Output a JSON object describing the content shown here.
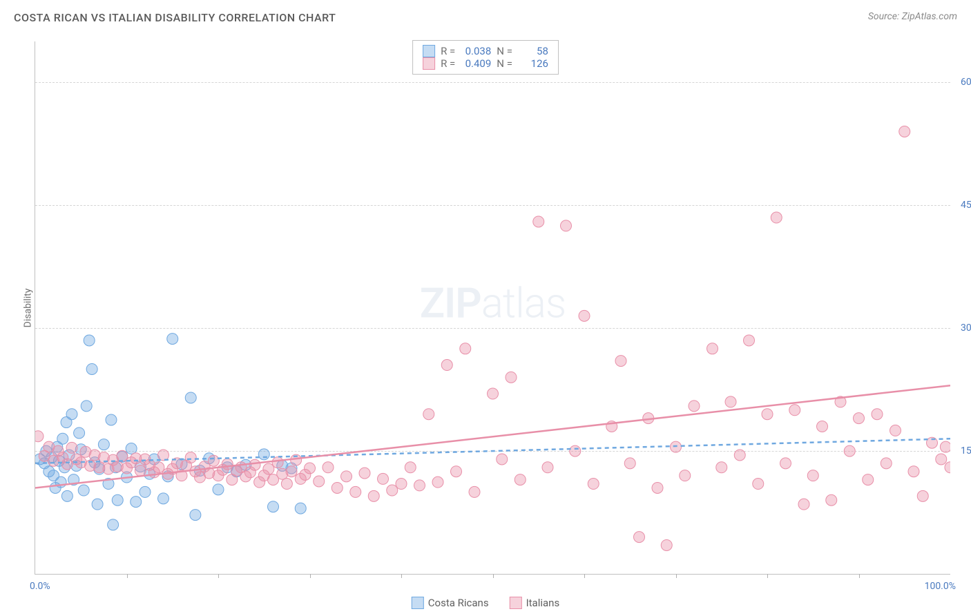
{
  "chart": {
    "type": "scatter",
    "title": "COSTA RICAN VS ITALIAN DISABILITY CORRELATION CHART",
    "source_label": "Source: ZipAtlas.com",
    "ylabel": "Disability",
    "watermark": {
      "part1": "ZIP",
      "part2": "atlas"
    },
    "background_color": "#ffffff",
    "grid_color": "#d5d5d5",
    "axis_color": "#c0c0c0",
    "title_color": "#5a5a5a",
    "title_fontsize": 16,
    "label_color": "#707070",
    "tick_color": "#4a7abf",
    "tick_fontsize": 14,
    "xlim": [
      0,
      100
    ],
    "ylim": [
      0,
      65
    ],
    "ytick_values": [
      15,
      30,
      45,
      60
    ],
    "ytick_labels": [
      "15.0%",
      "30.0%",
      "45.0%",
      "60.0%"
    ],
    "xtick_labels": {
      "start": "0.0%",
      "end": "100.0%"
    },
    "xminor_step": 10,
    "marker_radius": 8,
    "marker_fill_opacity": 0.45,
    "marker_stroke_opacity": 0.9,
    "marker_stroke_width": 1,
    "trendline_width": 2.5,
    "series": [
      {
        "name": "Costa Ricans",
        "key": "costa_ricans",
        "color": "#6fa8e0",
        "fill": "rgba(111,168,224,0.40)",
        "R": "0.038",
        "N": "58",
        "trendline": {
          "x1": 0,
          "y1": 13.5,
          "x2": 100,
          "y2": 16.5,
          "dash": "6,5"
        },
        "points": [
          [
            0.5,
            14
          ],
          [
            1,
            13.5
          ],
          [
            1.2,
            15
          ],
          [
            1.5,
            12.5
          ],
          [
            1.8,
            14.2
          ],
          [
            2,
            12
          ],
          [
            2.2,
            10.5
          ],
          [
            2.4,
            15.5
          ],
          [
            2.6,
            13.8
          ],
          [
            2.8,
            11.2
          ],
          [
            3,
            16.5
          ],
          [
            3.2,
            13
          ],
          [
            3.4,
            18.5
          ],
          [
            3.5,
            9.5
          ],
          [
            3.7,
            14.5
          ],
          [
            4,
            19.5
          ],
          [
            4.2,
            11.5
          ],
          [
            4.5,
            13.2
          ],
          [
            4.8,
            17.2
          ],
          [
            5,
            15.2
          ],
          [
            5.3,
            10.2
          ],
          [
            5.6,
            20.5
          ],
          [
            5.9,
            28.5
          ],
          [
            6.2,
            25.0
          ],
          [
            6.5,
            13.6
          ],
          [
            6.8,
            8.5
          ],
          [
            7,
            12.8
          ],
          [
            7.5,
            15.8
          ],
          [
            8,
            11.0
          ],
          [
            8.3,
            18.8
          ],
          [
            8.5,
            6.0
          ],
          [
            8.8,
            13.0
          ],
          [
            9,
            9.0
          ],
          [
            9.5,
            14.3
          ],
          [
            10,
            11.8
          ],
          [
            10.5,
            15.3
          ],
          [
            11,
            8.8
          ],
          [
            11.5,
            13.1
          ],
          [
            12,
            10.0
          ],
          [
            12.5,
            12.2
          ],
          [
            13,
            14.0
          ],
          [
            14,
            9.2
          ],
          [
            14.5,
            11.9
          ],
          [
            15,
            28.7
          ],
          [
            16,
            13.4
          ],
          [
            17,
            21.5
          ],
          [
            17.5,
            7.2
          ],
          [
            18,
            12.6
          ],
          [
            19,
            14.1
          ],
          [
            20,
            10.3
          ],
          [
            21,
            13.0
          ],
          [
            22,
            12.5
          ],
          [
            23,
            13.3
          ],
          [
            25,
            14.6
          ],
          [
            26,
            8.2
          ],
          [
            27,
            13.2
          ],
          [
            28,
            12.9
          ],
          [
            29,
            8.0
          ]
        ]
      },
      {
        "name": "Italians",
        "key": "italians",
        "color": "#e88fa8",
        "fill": "rgba(232,143,168,0.40)",
        "R": "0.409",
        "N": "126",
        "trendline": {
          "x1": 0,
          "y1": 10.5,
          "x2": 100,
          "y2": 23.0,
          "dash": null
        },
        "points": [
          [
            0.3,
            16.8
          ],
          [
            1,
            14.4
          ],
          [
            1.5,
            15.5
          ],
          [
            2,
            13.8
          ],
          [
            2.5,
            15.0
          ],
          [
            3,
            14.2
          ],
          [
            3.5,
            13.4
          ],
          [
            4,
            15.4
          ],
          [
            4.5,
            14.0
          ],
          [
            5,
            13.6
          ],
          [
            5.5,
            14.9
          ],
          [
            6,
            13.2
          ],
          [
            6.5,
            14.5
          ],
          [
            7,
            13.0
          ],
          [
            7.5,
            14.2
          ],
          [
            8,
            12.8
          ],
          [
            8.5,
            13.9
          ],
          [
            9,
            13.1
          ],
          [
            9.5,
            14.4
          ],
          [
            10,
            12.9
          ],
          [
            10.5,
            13.6
          ],
          [
            11,
            14.1
          ],
          [
            11.5,
            12.6
          ],
          [
            12,
            14.0
          ],
          [
            12.5,
            13.3
          ],
          [
            13,
            12.4
          ],
          [
            13.5,
            13.0
          ],
          [
            14,
            14.5
          ],
          [
            14.5,
            12.2
          ],
          [
            15,
            12.8
          ],
          [
            15.5,
            13.5
          ],
          [
            16,
            12.0
          ],
          [
            16.5,
            13.2
          ],
          [
            17,
            14.2
          ],
          [
            17.5,
            12.5
          ],
          [
            18,
            11.8
          ],
          [
            18.5,
            13.1
          ],
          [
            19,
            12.3
          ],
          [
            19.5,
            13.8
          ],
          [
            20,
            12.0
          ],
          [
            20.5,
            12.7
          ],
          [
            21,
            13.4
          ],
          [
            21.5,
            11.5
          ],
          [
            22,
            12.6
          ],
          [
            22.5,
            13.0
          ],
          [
            23,
            11.9
          ],
          [
            23.5,
            12.4
          ],
          [
            24,
            13.3
          ],
          [
            24.5,
            11.2
          ],
          [
            25,
            12.0
          ],
          [
            25.5,
            12.8
          ],
          [
            26,
            11.5
          ],
          [
            26.5,
            13.6
          ],
          [
            27,
            12.2
          ],
          [
            27.5,
            11.0
          ],
          [
            28,
            12.5
          ],
          [
            28.5,
            13.9
          ],
          [
            29,
            11.6
          ],
          [
            29.5,
            12.1
          ],
          [
            30,
            12.9
          ],
          [
            31,
            11.3
          ],
          [
            32,
            13.0
          ],
          [
            33,
            10.5
          ],
          [
            34,
            11.9
          ],
          [
            35,
            10.0
          ],
          [
            36,
            12.3
          ],
          [
            37,
            9.5
          ],
          [
            38,
            11.6
          ],
          [
            39,
            10.2
          ],
          [
            40,
            11.0
          ],
          [
            41,
            13.0
          ],
          [
            42,
            10.8
          ],
          [
            43,
            19.5
          ],
          [
            44,
            11.2
          ],
          [
            45,
            25.5
          ],
          [
            46,
            12.5
          ],
          [
            47,
            27.5
          ],
          [
            48,
            10.0
          ],
          [
            50,
            22.0
          ],
          [
            51,
            14.0
          ],
          [
            52,
            24.0
          ],
          [
            53,
            11.5
          ],
          [
            55,
            43.0
          ],
          [
            56,
            13.0
          ],
          [
            58,
            42.5
          ],
          [
            59,
            15.0
          ],
          [
            60,
            31.5
          ],
          [
            61,
            11.0
          ],
          [
            63,
            18.0
          ],
          [
            64,
            26.0
          ],
          [
            65,
            13.5
          ],
          [
            66,
            4.5
          ],
          [
            67,
            19.0
          ],
          [
            68,
            10.5
          ],
          [
            69,
            3.5
          ],
          [
            70,
            15.5
          ],
          [
            71,
            12.0
          ],
          [
            72,
            20.5
          ],
          [
            74,
            27.5
          ],
          [
            75,
            13.0
          ],
          [
            76,
            21.0
          ],
          [
            77,
            14.5
          ],
          [
            78,
            28.5
          ],
          [
            79,
            11.0
          ],
          [
            80,
            19.5
          ],
          [
            81,
            43.5
          ],
          [
            82,
            13.5
          ],
          [
            83,
            20.0
          ],
          [
            84,
            8.5
          ],
          [
            85,
            12.0
          ],
          [
            86,
            18.0
          ],
          [
            87,
            9.0
          ],
          [
            88,
            21.0
          ],
          [
            89,
            15.0
          ],
          [
            90,
            19.0
          ],
          [
            91,
            11.5
          ],
          [
            92,
            19.5
          ],
          [
            93,
            13.5
          ],
          [
            94,
            17.5
          ],
          [
            95,
            54.0
          ],
          [
            96,
            12.5
          ],
          [
            97,
            9.5
          ],
          [
            98,
            16.0
          ],
          [
            99,
            14.0
          ],
          [
            99.5,
            15.5
          ],
          [
            100,
            13.0
          ]
        ]
      }
    ],
    "legend_top": {
      "r_label": "R =",
      "n_label": "N ="
    }
  }
}
